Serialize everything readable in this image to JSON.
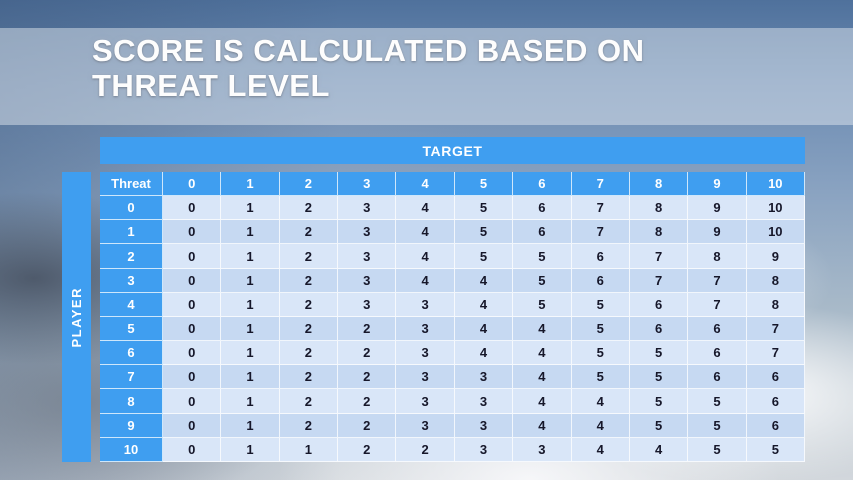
{
  "slide": {
    "title_line1": "SCORE IS CALCULATED BASED ON",
    "title_line2": "THREAT LEVEL"
  },
  "table": {
    "target_label": "TARGET",
    "player_label": "PLAYER",
    "corner_label": "Threat",
    "column_headers": [
      "0",
      "1",
      "2",
      "3",
      "4",
      "5",
      "6",
      "7",
      "8",
      "9",
      "10"
    ],
    "rows": [
      {
        "header": "0",
        "values": [
          "0",
          "1",
          "2",
          "3",
          "4",
          "5",
          "6",
          "7",
          "8",
          "9",
          "10"
        ]
      },
      {
        "header": "1",
        "values": [
          "0",
          "1",
          "2",
          "3",
          "4",
          "5",
          "6",
          "7",
          "8",
          "9",
          "10"
        ]
      },
      {
        "header": "2",
        "values": [
          "0",
          "1",
          "2",
          "3",
          "4",
          "5",
          "5",
          "6",
          "7",
          "8",
          "9"
        ]
      },
      {
        "header": "3",
        "values": [
          "0",
          "1",
          "2",
          "3",
          "4",
          "4",
          "5",
          "6",
          "7",
          "7",
          "8"
        ]
      },
      {
        "header": "4",
        "values": [
          "0",
          "1",
          "2",
          "3",
          "3",
          "4",
          "5",
          "5",
          "6",
          "7",
          "8"
        ]
      },
      {
        "header": "5",
        "values": [
          "0",
          "1",
          "2",
          "2",
          "3",
          "4",
          "4",
          "5",
          "6",
          "6",
          "7"
        ]
      },
      {
        "header": "6",
        "values": [
          "0",
          "1",
          "2",
          "2",
          "3",
          "4",
          "4",
          "5",
          "5",
          "6",
          "7"
        ]
      },
      {
        "header": "7",
        "values": [
          "0",
          "1",
          "2",
          "2",
          "3",
          "3",
          "4",
          "5",
          "5",
          "6",
          "6"
        ]
      },
      {
        "header": "8",
        "values": [
          "0",
          "1",
          "2",
          "2",
          "3",
          "3",
          "4",
          "4",
          "5",
          "5",
          "6"
        ]
      },
      {
        "header": "9",
        "values": [
          "0",
          "1",
          "2",
          "2",
          "3",
          "3",
          "4",
          "4",
          "5",
          "5",
          "6"
        ]
      },
      {
        "header": "10",
        "values": [
          "0",
          "1",
          "1",
          "2",
          "2",
          "3",
          "3",
          "4",
          "4",
          "5",
          "5"
        ]
      }
    ]
  },
  "colors": {
    "accent": "#3f9ef0",
    "band_a": "#d9e6f8",
    "band_b": "#c6d9f2",
    "title_text": "#fdfdfd",
    "data_text": "#16172a"
  }
}
